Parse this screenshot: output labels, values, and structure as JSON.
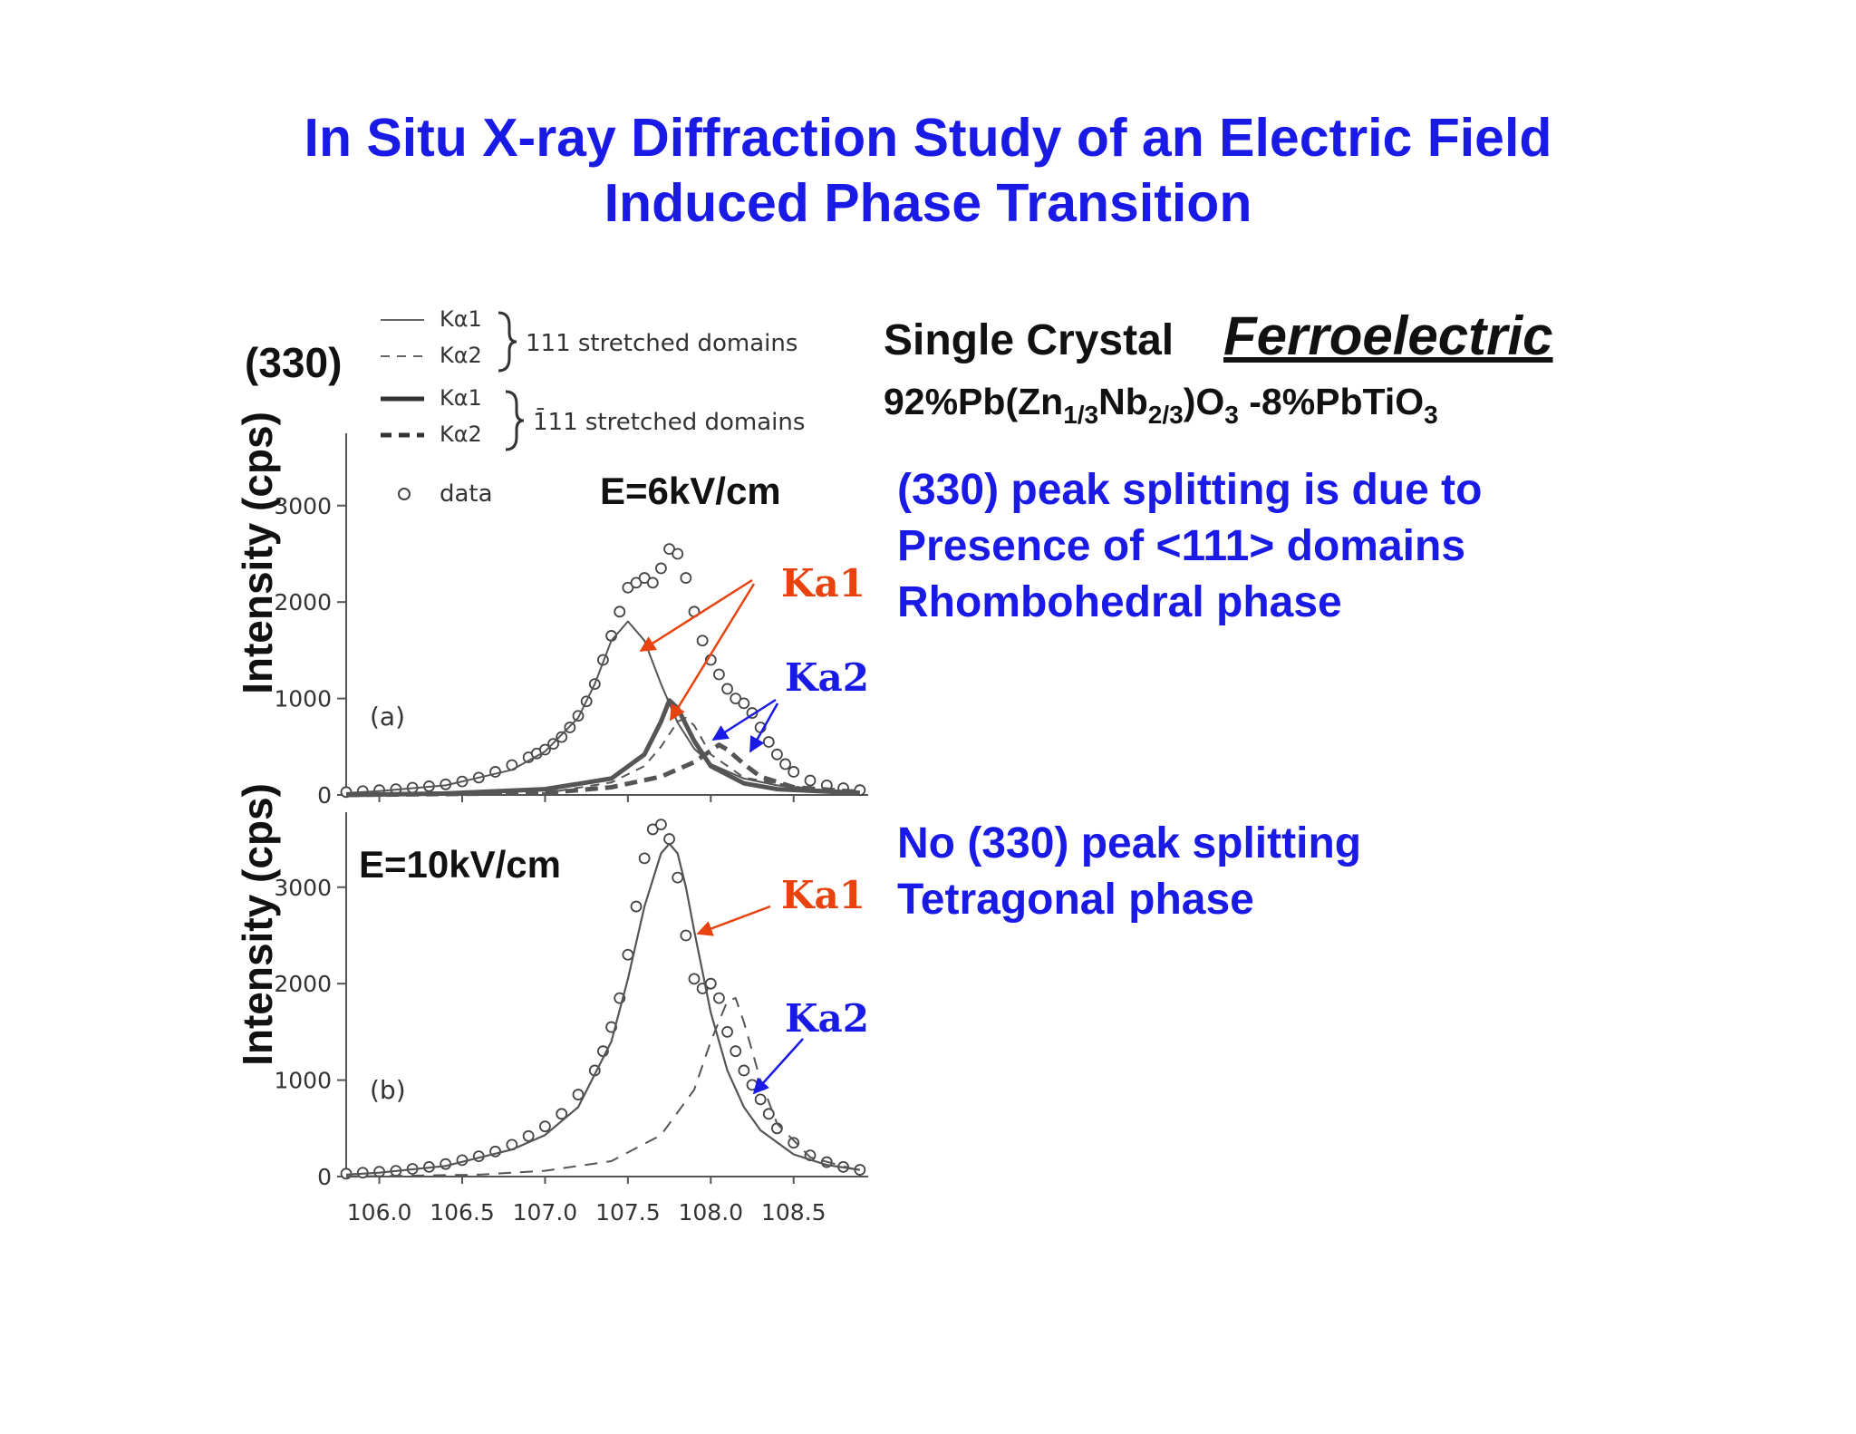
{
  "title": {
    "line1": "In Situ X-ray Diffraction Study of an Electric Field",
    "line2": "Induced Phase Transition"
  },
  "right_panel": {
    "single_crystal": "Single Crystal",
    "ferroelectric": "Ferroelectric",
    "formula": {
      "p1": "92%Pb(Zn",
      "s1": "1/3",
      "p2": "Nb",
      "s2": "2/3",
      "p3": ")O",
      "s3": "3",
      "p4": " -8%PbTiO",
      "s4": "3"
    },
    "block1": [
      "(330) peak splitting is due to",
      "Presence of <111> domains",
      "Rhombohedral phase"
    ],
    "block2": [
      "No (330) peak splitting",
      "Tetragonal phase"
    ]
  },
  "colors": {
    "title": "#1a1ae6",
    "ka1_label": "#e8420e",
    "ka2_label": "#1a1ae6",
    "curves": "#555555"
  },
  "chart_data": {
    "type": "scatter",
    "reflection_label": "(330)",
    "ylabel": "Intensity (cps)",
    "xlim": [
      105.8,
      108.95
    ],
    "xticks": [
      "106.0",
      "106.5",
      "107.0",
      "107.5",
      "108.0",
      "108.5"
    ],
    "yticks": [
      "0",
      "1000",
      "2000",
      "3000"
    ],
    "legend": {
      "entries": [
        {
          "name": "Kα1",
          "style": "thin-solid"
        },
        {
          "name": "Kα2",
          "style": "thin-dashed"
        },
        {
          "name": "Kα1",
          "style": "thick-solid"
        },
        {
          "name": "Kα2",
          "style": "thick-dashed"
        },
        {
          "name": "data",
          "style": "circle"
        }
      ],
      "group1": "111 stretched domains",
      "group2": "1̄11 stretched domains"
    },
    "annotations": {
      "ka1": "Ka1",
      "ka2": "Ka2"
    },
    "panels": [
      {
        "id": "a",
        "tag": "(a)",
        "field_label": "E=6kV/cm",
        "ylim": [
          0,
          3900
        ],
        "series": [
          {
            "role": "data",
            "x": [
              105.8,
              105.9,
              106.0,
              106.1,
              106.2,
              106.3,
              106.4,
              106.5,
              106.6,
              106.7,
              106.8,
              106.9,
              106.95,
              107.0,
              107.05,
              107.1,
              107.15,
              107.2,
              107.25,
              107.3,
              107.35,
              107.4,
              107.45,
              107.5,
              107.55,
              107.6,
              107.65,
              107.7,
              107.75,
              107.8,
              107.85,
              107.9,
              107.95,
              108.0,
              108.05,
              108.1,
              108.15,
              108.2,
              108.25,
              108.3,
              108.35,
              108.4,
              108.45,
              108.5,
              108.6,
              108.7,
              108.8,
              108.9
            ],
            "y": [
              30,
              40,
              50,
              60,
              75,
              90,
              110,
              140,
              180,
              240,
              310,
              390,
              430,
              470,
              530,
              600,
              700,
              820,
              970,
              1150,
              1400,
              1650,
              1900,
              2150,
              2200,
              2250,
              2200,
              2350,
              2550,
              2500,
              2250,
              1900,
              1600,
              1400,
              1250,
              1100,
              1000,
              950,
              850,
              700,
              550,
              420,
              320,
              240,
              150,
              100,
              70,
              50
            ]
          },
          {
            "role": "111 Ka1",
            "x": [
              105.8,
              106.0,
              106.4,
              106.8,
              107.0,
              107.2,
              107.3,
              107.4,
              107.5,
              107.6,
              107.7,
              107.8,
              107.9,
              108.0,
              108.2,
              108.4,
              108.6,
              108.9
            ],
            "y": [
              20,
              40,
              100,
              260,
              450,
              800,
              1150,
              1600,
              1800,
              1600,
              1150,
              750,
              480,
              320,
              170,
              100,
              60,
              35
            ]
          },
          {
            "role": "1-11 Ka1",
            "x": [
              105.8,
              106.4,
              107.0,
              107.4,
              107.6,
              107.7,
              107.75,
              107.8,
              107.9,
              108.0,
              108.2,
              108.4,
              108.9
            ],
            "y": [
              0,
              15,
              60,
              170,
              420,
              760,
              980,
              900,
              560,
              300,
              120,
              60,
              20
            ]
          },
          {
            "role": "111 Ka2",
            "x": [
              105.8,
              107.0,
              107.4,
              107.6,
              107.7,
              107.8,
              107.85,
              107.9,
              108.0,
              108.2,
              108.6,
              108.9
            ],
            "y": [
              0,
              20,
              130,
              300,
              500,
              760,
              800,
              720,
              420,
              180,
              60,
              30
            ]
          },
          {
            "role": "1-11 Ka2",
            "x": [
              105.8,
              107.0,
              107.4,
              107.7,
              107.9,
              108.0,
              108.05,
              108.1,
              108.2,
              108.3,
              108.5,
              108.9
            ],
            "y": [
              0,
              20,
              80,
              190,
              340,
              460,
              520,
              470,
              320,
              190,
              80,
              30
            ]
          }
        ]
      },
      {
        "id": "b",
        "tag": "(b)",
        "field_label": "E=10kV/cm",
        "ylim": [
          0,
          3900
        ],
        "series": [
          {
            "role": "data",
            "x": [
              105.8,
              105.9,
              106.0,
              106.1,
              106.2,
              106.3,
              106.4,
              106.5,
              106.6,
              106.7,
              106.8,
              106.9,
              107.0,
              107.1,
              107.2,
              107.3,
              107.35,
              107.4,
              107.45,
              107.5,
              107.55,
              107.6,
              107.65,
              107.7,
              107.75,
              107.8,
              107.85,
              107.9,
              107.95,
              108.0,
              108.05,
              108.1,
              108.15,
              108.2,
              108.25,
              108.3,
              108.35,
              108.4,
              108.5,
              108.6,
              108.7,
              108.8,
              108.9
            ],
            "y": [
              30,
              40,
              50,
              60,
              80,
              100,
              130,
              170,
              210,
              260,
              330,
              420,
              520,
              650,
              850,
              1100,
              1300,
              1550,
              1850,
              2300,
              2800,
              3300,
              3600,
              3650,
              3500,
              3100,
              2500,
              2050,
              1950,
              2000,
              1850,
              1500,
              1300,
              1100,
              950,
              800,
              650,
              500,
              350,
              220,
              150,
              100,
              70
            ]
          },
          {
            "role": "Ka1",
            "x": [
              105.8,
              106.0,
              106.4,
              106.8,
              107.0,
              107.2,
              107.4,
              107.5,
              107.6,
              107.7,
              107.75,
              107.8,
              107.85,
              107.9,
              108.0,
              108.1,
              108.2,
              108.3,
              108.5,
              108.7,
              108.9
            ],
            "y": [
              20,
              40,
              110,
              280,
              430,
              720,
              1400,
              2050,
              2800,
              3350,
              3450,
              3350,
              3000,
              2550,
              1700,
              1100,
              720,
              480,
              230,
              120,
              70
            ]
          },
          {
            "role": "Ka2",
            "x": [
              105.8,
              106.6,
              107.0,
              107.4,
              107.7,
              107.9,
              108.0,
              108.1,
              108.15,
              108.2,
              108.3,
              108.4,
              108.6,
              108.9
            ],
            "y": [
              0,
              20,
              60,
              160,
              430,
              900,
              1400,
              1820,
              1850,
              1600,
              1000,
              550,
              200,
              60
            ]
          }
        ]
      }
    ]
  }
}
